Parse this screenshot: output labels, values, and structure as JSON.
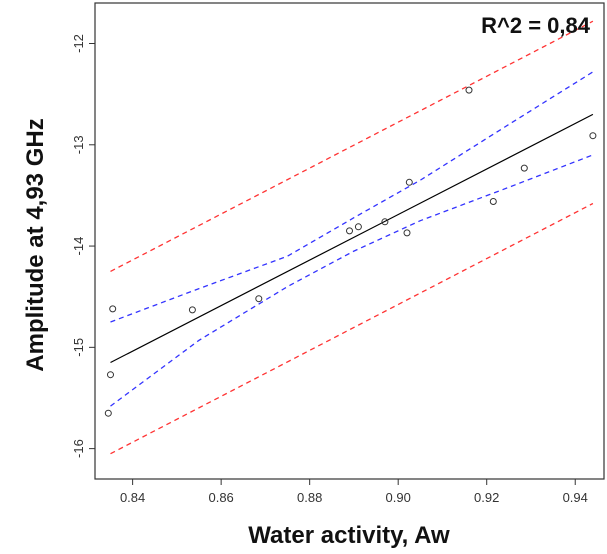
{
  "chart_data": {
    "type": "scatter",
    "title": "",
    "annotation": "R^2 = 0,84",
    "xlabel": "Water activity, Aw",
    "ylabel": "Amplitude at 4,93 GHz",
    "xlim": [
      0.8315,
      0.9465
    ],
    "ylim": [
      -16.3,
      -11.6
    ],
    "x_ticks": [
      0.84,
      0.86,
      0.88,
      0.9,
      0.92,
      0.94
    ],
    "x_tick_labels": [
      "0.84",
      "0.86",
      "0.88",
      "0.90",
      "0.92",
      "0.94"
    ],
    "y_ticks": [
      -16,
      -15,
      -14,
      -13,
      -12
    ],
    "y_tick_labels": [
      "-16",
      "-15",
      "-14",
      "-13",
      "-12"
    ],
    "grid": false,
    "points": {
      "x": [
        0.8345,
        0.835,
        0.8355,
        0.8535,
        0.8685,
        0.889,
        0.891,
        0.897,
        0.902,
        0.9025,
        0.916,
        0.9215,
        0.9285,
        0.944
      ],
      "y": [
        -15.65,
        -15.27,
        -14.62,
        -14.63,
        -14.52,
        -13.85,
        -13.81,
        -13.76,
        -13.87,
        -13.37,
        -12.46,
        -13.56,
        -13.23,
        -12.91
      ]
    },
    "fit_line": {
      "x": [
        0.835,
        0.944
      ],
      "y": [
        -15.15,
        -12.7
      ],
      "color": "#000000"
    },
    "confidence_band": {
      "color": "#3333ff",
      "x": [
        0.835,
        0.855,
        0.875,
        0.89,
        0.905,
        0.925,
        0.944
      ],
      "upper": [
        -14.75,
        -14.42,
        -14.1,
        -13.72,
        -13.35,
        -12.8,
        -12.28
      ],
      "lower": [
        -15.58,
        -14.93,
        -14.4,
        -14.05,
        -13.75,
        -13.42,
        -13.1
      ]
    },
    "prediction_band": {
      "color": "#ff3333",
      "x": [
        0.835,
        0.944
      ],
      "upper": [
        -14.25,
        -11.78
      ],
      "lower": [
        -16.05,
        -13.58
      ]
    },
    "colors": {
      "points": "#333333",
      "frame": "#333333"
    }
  }
}
